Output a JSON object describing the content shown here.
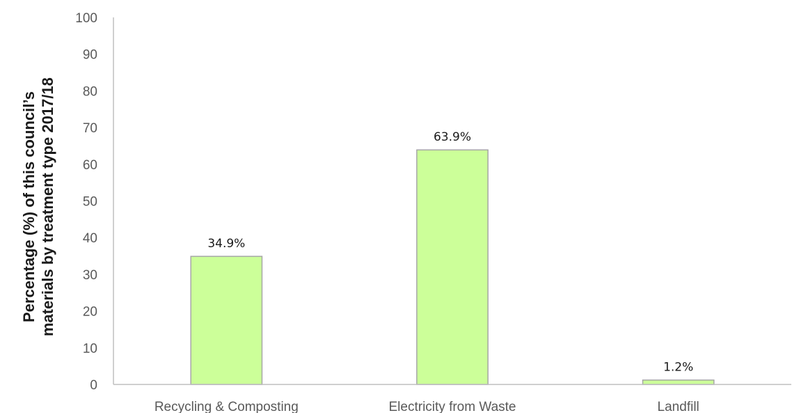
{
  "chart_data": {
    "type": "bar",
    "categories": [
      "Recycling & Composting",
      "Electricity from Waste",
      "Landfill"
    ],
    "values": [
      34.9,
      63.9,
      1.2
    ],
    "data_labels": [
      "34.9%",
      "63.9%",
      "1.2%"
    ],
    "title": "",
    "xlabel": "",
    "ylabel": [
      "Percentage (%) of this council’s",
      "materials by treatment type 2017/18"
    ],
    "ylim": [
      0,
      100
    ],
    "yticks": [
      0,
      10,
      20,
      30,
      40,
      50,
      60,
      70,
      80,
      90,
      100
    ],
    "grid": false,
    "legend": "none",
    "colors": {
      "bar_fill": "#ccff99",
      "bar_stroke": "#a6a6a6",
      "axis": "#bfbfbf"
    }
  }
}
